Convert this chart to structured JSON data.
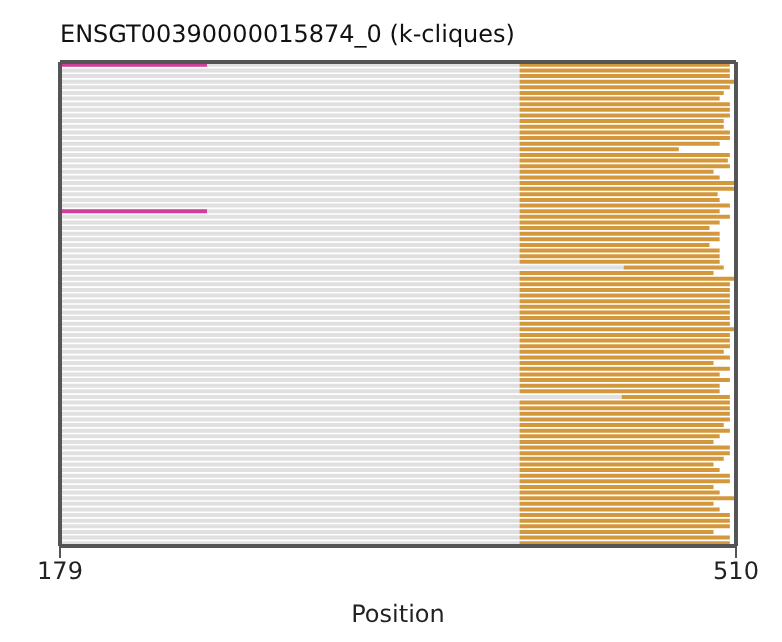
{
  "chart_data": {
    "type": "bar",
    "orientation": "horizontal",
    "title": "ENSGT00390000015874_0 (k-cliques)",
    "xlabel": "Position",
    "xlim": [
      179,
      510
    ],
    "xticks": [
      179,
      510
    ],
    "legend": false,
    "tick_labels": "x",
    "categories": [
      null,
      null,
      null,
      null,
      null,
      null,
      null,
      null,
      null,
      null,
      null,
      null,
      null,
      null,
      null,
      null,
      null,
      null,
      null,
      null,
      null,
      null,
      null,
      null,
      null,
      null,
      null,
      null,
      null,
      null,
      null,
      null,
      null,
      null,
      null,
      null,
      null,
      null,
      null,
      null,
      null,
      null,
      null,
      null,
      null,
      null,
      null,
      null,
      null,
      null,
      null,
      null,
      null,
      null,
      null,
      null,
      null,
      null,
      null,
      null,
      null,
      null,
      null,
      null,
      null,
      null,
      null,
      null,
      null,
      null,
      null,
      null,
      null,
      null,
      null,
      null,
      null,
      null,
      null,
      null,
      null,
      null,
      null,
      null,
      null,
      null
    ],
    "series": [
      {
        "color": "#e0e0e0",
        "base": [
          179,
          179,
          179,
          179,
          179,
          179,
          179,
          179,
          179,
          179,
          179,
          179,
          179,
          179,
          179,
          179,
          179,
          179,
          179,
          179,
          179,
          179,
          179,
          179,
          179,
          179,
          179,
          179,
          179,
          179,
          179,
          179,
          179,
          179,
          179,
          179,
          179,
          179,
          179,
          179,
          179,
          179,
          179,
          179,
          179,
          179,
          179,
          179,
          179,
          179,
          179,
          179,
          179,
          179,
          179,
          179,
          179,
          179,
          179,
          179,
          179,
          179,
          179,
          179,
          179,
          179,
          179,
          179,
          179,
          179,
          179,
          179,
          179,
          179,
          179,
          179,
          179,
          179,
          179,
          179,
          179,
          179,
          179,
          179,
          179,
          179
        ],
        "values": [
          225,
          225,
          225,
          225,
          225,
          225,
          225,
          225,
          225,
          225,
          225,
          225,
          225,
          225,
          225,
          225,
          225,
          225,
          225,
          225,
          225,
          225,
          225,
          225,
          225,
          225,
          225,
          225,
          225,
          225,
          225,
          225,
          225,
          225,
          225,
          225,
          276,
          225,
          225,
          225,
          225,
          225,
          225,
          225,
          225,
          225,
          225,
          225,
          225,
          225,
          225,
          225,
          225,
          225,
          225,
          225,
          225,
          225,
          225,
          275,
          225,
          225,
          225,
          225,
          225,
          225,
          225,
          225,
          225,
          225,
          225,
          225,
          225,
          225,
          225,
          225,
          225,
          225,
          225,
          225,
          225,
          225,
          225,
          225,
          225,
          225
        ]
      },
      {
        "color": "#d4983c",
        "base": [
          404,
          404,
          404,
          404,
          404,
          404,
          404,
          404,
          404,
          404,
          404,
          404,
          404,
          404,
          404,
          404,
          404,
          404,
          404,
          404,
          404,
          404,
          404,
          404,
          404,
          404,
          404,
          404,
          404,
          404,
          404,
          404,
          404,
          404,
          404,
          404,
          455,
          404,
          404,
          404,
          404,
          404,
          404,
          404,
          404,
          404,
          404,
          404,
          404,
          404,
          404,
          404,
          404,
          404,
          404,
          404,
          404,
          404,
          404,
          454,
          404,
          404,
          404,
          404,
          404,
          404,
          404,
          404,
          404,
          404,
          404,
          404,
          404,
          404,
          404,
          404,
          404,
          404,
          404,
          404,
          404,
          404,
          404,
          404,
          404,
          404
        ],
        "values": [
          103,
          103,
          103,
          105,
          103,
          100,
          98,
          103,
          103,
          103,
          100,
          100,
          103,
          103,
          98,
          78,
          103,
          102,
          103,
          95,
          98,
          105,
          105,
          97,
          98,
          103,
          98,
          103,
          98,
          93,
          98,
          98,
          93,
          98,
          98,
          98,
          49,
          95,
          105,
          103,
          103,
          103,
          103,
          103,
          103,
          103,
          103,
          105,
          103,
          103,
          103,
          100,
          103,
          95,
          103,
          98,
          103,
          98,
          98,
          53,
          103,
          103,
          103,
          103,
          100,
          103,
          98,
          95,
          103,
          103,
          100,
          95,
          98,
          103,
          103,
          95,
          98,
          105,
          95,
          98,
          103,
          103,
          103,
          95,
          103,
          103
        ]
      },
      {
        "color": "#d0409a",
        "base": [
          179,
          null,
          null,
          null,
          null,
          null,
          null,
          null,
          null,
          null,
          null,
          null,
          null,
          null,
          null,
          null,
          null,
          null,
          null,
          null,
          null,
          null,
          null,
          null,
          null,
          null,
          179,
          null,
          null,
          null,
          null,
          null,
          null,
          null,
          null,
          null,
          null,
          null,
          null,
          null,
          null,
          null,
          null,
          null,
          null,
          null,
          null,
          null,
          null,
          null,
          null,
          null,
          null,
          null,
          null,
          null,
          null,
          null,
          null,
          null,
          null,
          null,
          null,
          null,
          null,
          null,
          null,
          null,
          null,
          null,
          null,
          null,
          null,
          null,
          null,
          null,
          null,
          null,
          null,
          null,
          null,
          null,
          null,
          null,
          null,
          null
        ],
        "values": [
          72,
          null,
          null,
          null,
          null,
          null,
          null,
          null,
          null,
          null,
          null,
          null,
          null,
          null,
          null,
          null,
          null,
          null,
          null,
          null,
          null,
          null,
          null,
          null,
          null,
          null,
          72,
          null,
          null,
          null,
          null,
          null,
          null,
          null,
          null,
          null,
          null,
          null,
          null,
          null,
          null,
          null,
          null,
          null,
          null,
          null,
          null,
          null,
          null,
          null,
          null,
          null,
          null,
          null,
          null,
          null,
          null,
          null,
          null,
          null,
          null,
          null,
          null,
          null,
          null,
          null,
          null,
          null,
          null,
          null,
          null,
          null,
          null,
          null,
          null,
          null,
          null,
          null,
          null,
          null,
          null,
          null,
          null,
          null,
          null,
          null
        ]
      }
    ]
  }
}
